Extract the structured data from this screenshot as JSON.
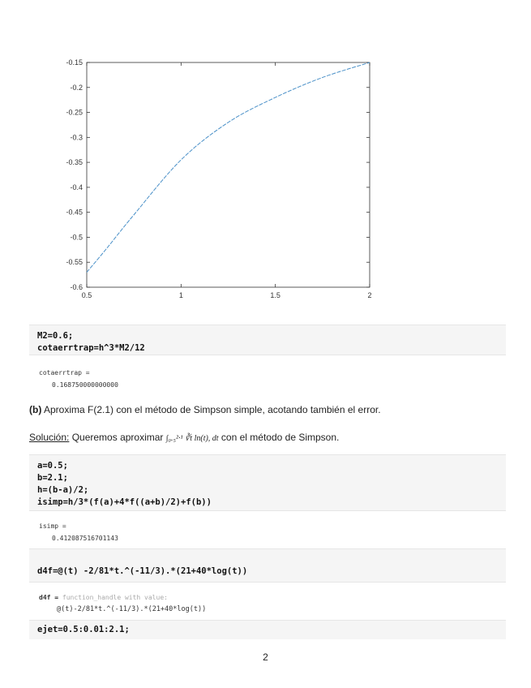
{
  "chart_data": {
    "type": "line",
    "x": [
      0.5,
      0.6,
      0.75,
      1.0,
      1.25,
      1.5,
      1.75,
      2.0
    ],
    "y": [
      -0.57,
      -0.525,
      -0.455,
      -0.345,
      -0.27,
      -0.22,
      -0.18,
      -0.15
    ],
    "xlim": [
      0.5,
      2
    ],
    "ylim": [
      -0.6,
      -0.15
    ],
    "xticks": [
      "0.5",
      "1",
      "1.5",
      "2"
    ],
    "yticks": [
      "-0.15",
      "-0.2",
      "-0.25",
      "-0.3",
      "-0.35",
      "-0.4",
      "-0.45",
      "-0.5",
      "-0.55",
      "-0.6"
    ],
    "line_color": "#4a90c8",
    "grid": false
  },
  "cells": {
    "c1": "M2=0.6;\ncotaerrtrap=h^3*M2/12",
    "o1_name": "cotaerrtrap =",
    "o1_val": "0.168750000000000",
    "part_b_label": "(b)",
    "part_b": " Aproxima F(2.1) con el método de Simpson simple, acotando también el error.",
    "sol_label": "Solución:",
    "sol_text1": " Queremos aproximar ",
    "sol_math": "∫₀.₅²·¹ ∛t ln(t), dt",
    "sol_text2": " con el método de Simpson.",
    "c2": "a=0.5;\nb=2.1;\nh=(b-a)/2;\nisimp=h/3*(f(a)+4*f((a+b)/2)+f(b))",
    "o2_name": "isimp =",
    "o2_val": "0.412087516701143",
    "c3": "d4f=@(t) -2/81*t.^(-11/3).*(21+40*log(t))",
    "o3_name": "d4f = ",
    "o3_desc": "function_handle with value:",
    "o3_val": "@(t)-2/81*t.^(-11/3).*(21+40*log(t))",
    "c4": "ejet=0.5:0.01:2.1;"
  },
  "page_number": "2"
}
